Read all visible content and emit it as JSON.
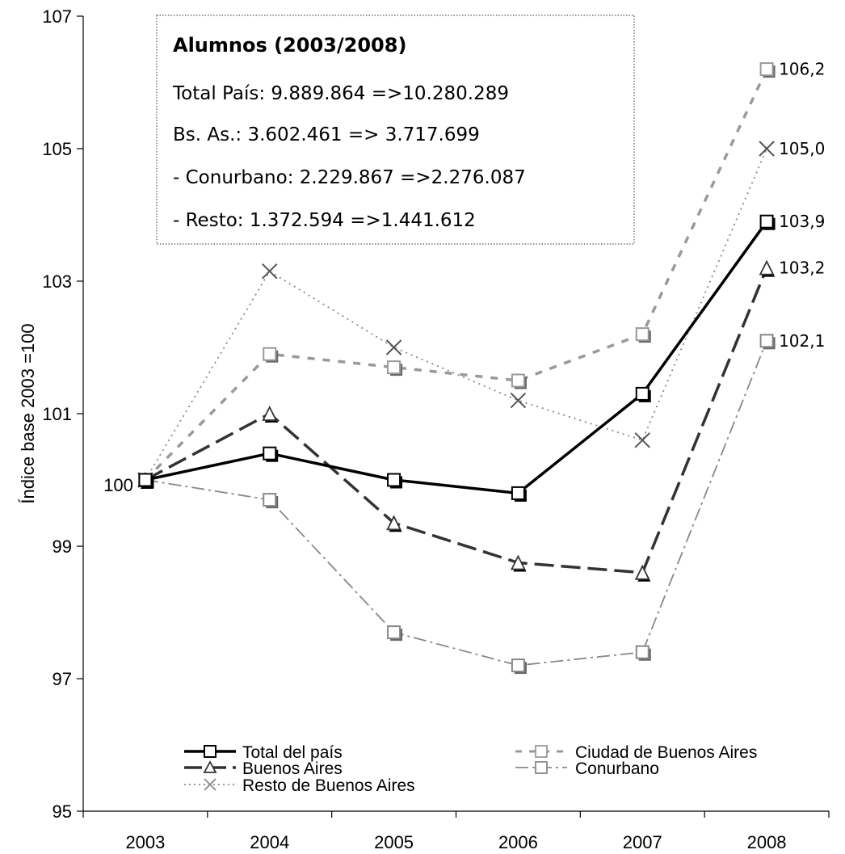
{
  "chart_data": {
    "type": "line",
    "ylabel": "Índice base 2003 =100",
    "xlabel": "",
    "x": [
      "2003",
      "2004",
      "2005",
      "2006",
      "2007",
      "2008"
    ],
    "ylim": [
      95,
      107
    ],
    "yticks": [
      "95",
      "97",
      "99",
      "101",
      "103",
      "105",
      "107"
    ],
    "grid": false,
    "legend_position": "bottom-inside",
    "start_label": "100",
    "series": [
      {
        "name": "Total del país",
        "values": [
          100,
          100.4,
          100.0,
          99.8,
          101.3,
          103.9
        ],
        "end_label": "103,9",
        "color": "#000000",
        "marker": "square"
      },
      {
        "name": "Ciudad de Buenos Aires",
        "values": [
          100,
          101.9,
          101.7,
          101.5,
          102.2,
          106.2
        ],
        "end_label": "106,2",
        "color": "#999999",
        "marker": "square"
      },
      {
        "name": "Buenos Aires",
        "values": [
          100,
          101.0,
          99.35,
          98.75,
          98.6,
          103.2
        ],
        "end_label": "103,2",
        "color": "#333333",
        "marker": "triangle"
      },
      {
        "name": "Conurbano",
        "values": [
          100,
          99.7,
          97.7,
          97.2,
          97.4,
          102.1
        ],
        "end_label": "102,1",
        "color": "#888888",
        "marker": "square"
      },
      {
        "name": "Resto de Buenos Aires",
        "values": [
          100,
          103.15,
          102.0,
          101.2,
          100.6,
          105.0
        ],
        "end_label": "105,0",
        "color": "#888888",
        "marker": "x"
      }
    ],
    "annotation_box": {
      "title": "Alumnos (2003/2008)",
      "lines": [
        "Total País: 9.889.864 =>10.280.289",
        "Bs. As.: 3.602.461 => 3.717.699",
        "- Conurbano: 2.229.867 =>2.276.087",
        "- Resto: 1.372.594 =>1.441.612"
      ]
    }
  }
}
